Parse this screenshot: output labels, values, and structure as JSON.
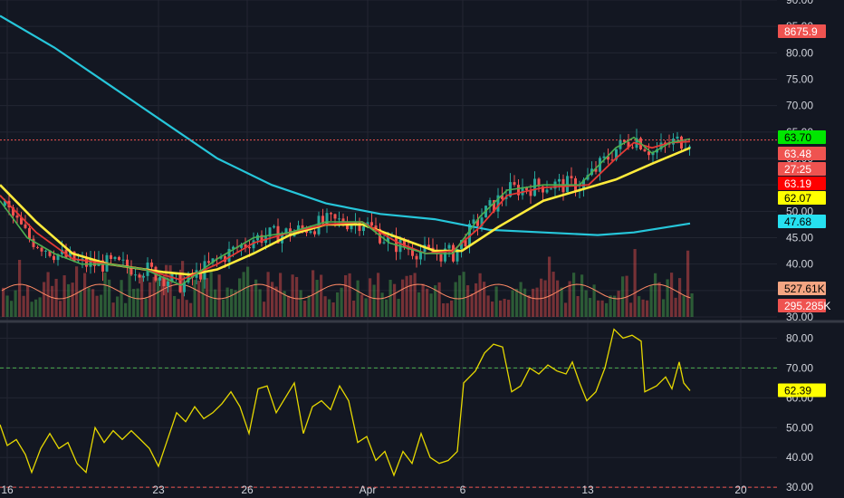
{
  "colors": {
    "background": "#131722",
    "grid": "#232632",
    "axis_text": "#d1d4dc",
    "candle_up": "#26a69a",
    "candle_down": "#ef5350",
    "bar_up": "#4caf50",
    "bar_down": "#ef5350",
    "ema_fast": "#4caf50",
    "ema_mid": "#e53935",
    "ema_slow": "#ffeb3b",
    "sma_long": "#26c6da",
    "volume_ma": "#ff8a65",
    "rsi_line": "#e6d800",
    "rsi_upper": "#4caf50",
    "rsi_lower": "#ef5350"
  },
  "chart_data": [
    {
      "type": "candlestick",
      "panel": "price",
      "x_ticks": [
        "16",
        "23",
        "26",
        "Apr",
        "6",
        "13",
        "20"
      ],
      "y_ticks": [
        "30.00",
        "35.00",
        "40.00",
        "45.00",
        "50.00",
        "55.00",
        "60.00",
        "65.00",
        "70.00",
        "75.00",
        "80.00",
        "85.00",
        "90.00"
      ],
      "ylim": [
        30,
        90
      ],
      "series": [
        {
          "key": "sma_long",
          "points": [
            [
              0,
              87
            ],
            [
              60,
              81
            ],
            [
              120,
              74
            ],
            [
              180,
              67
            ],
            [
              240,
              60
            ],
            [
              300,
              55
            ],
            [
              360,
              51.5
            ],
            [
              420,
              49.5
            ],
            [
              480,
              48.5
            ],
            [
              540,
              46.5
            ],
            [
              600,
              46
            ],
            [
              660,
              45.5
            ],
            [
              700,
              46
            ],
            [
              762,
              47.7
            ]
          ]
        },
        {
          "key": "ema_slow",
          "points": [
            [
              0,
              55
            ],
            [
              40,
              48
            ],
            [
              80,
              42
            ],
            [
              120,
              40
            ],
            [
              180,
              38.5
            ],
            [
              210,
              38
            ],
            [
              240,
              39
            ],
            [
              280,
              42
            ],
            [
              320,
              45.5
            ],
            [
              360,
              47.5
            ],
            [
              400,
              47.5
            ],
            [
              440,
              45
            ],
            [
              480,
              42.5
            ],
            [
              510,
              42.5
            ],
            [
              550,
              47
            ],
            [
              600,
              52
            ],
            [
              650,
              54.5
            ],
            [
              680,
              56
            ],
            [
              720,
              59
            ],
            [
              762,
              62
            ]
          ]
        },
        {
          "key": "ema_mid",
          "points": [
            [
              0,
              53
            ],
            [
              40,
              46
            ],
            [
              80,
              41
            ],
            [
              120,
              40
            ],
            [
              160,
              39
            ],
            [
              200,
              37
            ],
            [
              240,
              40
            ],
            [
              280,
              44
            ],
            [
              320,
              46
            ],
            [
              360,
              47.5
            ],
            [
              400,
              48
            ],
            [
              440,
              44
            ],
            [
              470,
              42
            ],
            [
              500,
              42.5
            ],
            [
              530,
              47
            ],
            [
              560,
              53
            ],
            [
              600,
              54.5
            ],
            [
              650,
              55
            ],
            [
              680,
              60
            ],
            [
              700,
              63
            ],
            [
              720,
              62
            ],
            [
              740,
              63
            ],
            [
              762,
              63.2
            ]
          ]
        },
        {
          "key": "ema_fast",
          "points": [
            [
              0,
              52
            ],
            [
              30,
              45
            ],
            [
              60,
              42
            ],
            [
              90,
              40
            ],
            [
              120,
              40
            ],
            [
              160,
              39
            ],
            [
              200,
              36
            ],
            [
              240,
              41
            ],
            [
              280,
              45
            ],
            [
              320,
              46
            ],
            [
              360,
              48
            ],
            [
              400,
              48
            ],
            [
              430,
              44
            ],
            [
              470,
              42
            ],
            [
              500,
              42
            ],
            [
              530,
              49
            ],
            [
              560,
              54
            ],
            [
              600,
              55
            ],
            [
              640,
              55
            ],
            [
              680,
              62
            ],
            [
              700,
              64
            ],
            [
              720,
              61
            ],
            [
              740,
              63
            ],
            [
              762,
              63.7
            ]
          ]
        }
      ],
      "last_values": [
        "8675.9",
        "63.70",
        "63.48",
        "27:25",
        "63.19",
        "62.07",
        "47.68",
        "527.61K",
        "295.285K"
      ],
      "reference_line": 63.5
    },
    {
      "type": "line",
      "panel": "rsi",
      "y_ticks": [
        "30.00",
        "40.00",
        "50.00",
        "60.00",
        "70.00",
        "80.00"
      ],
      "ylim": [
        27,
        85
      ],
      "upper": 70,
      "lower": 30,
      "last_value": "62.39",
      "values": [
        [
          0,
          51
        ],
        [
          8,
          44
        ],
        [
          18,
          46
        ],
        [
          28,
          41
        ],
        [
          35,
          35
        ],
        [
          45,
          43
        ],
        [
          55,
          48
        ],
        [
          65,
          43
        ],
        [
          75,
          45
        ],
        [
          85,
          38
        ],
        [
          95,
          35
        ],
        [
          105,
          50
        ],
        [
          115,
          45
        ],
        [
          125,
          49
        ],
        [
          135,
          46
        ],
        [
          145,
          49
        ],
        [
          155,
          46
        ],
        [
          165,
          43
        ],
        [
          175,
          37
        ],
        [
          185,
          46
        ],
        [
          195,
          55
        ],
        [
          205,
          52
        ],
        [
          215,
          57
        ],
        [
          225,
          53
        ],
        [
          235,
          55
        ],
        [
          245,
          58
        ],
        [
          255,
          62
        ],
        [
          265,
          57
        ],
        [
          275,
          48
        ],
        [
          285,
          63
        ],
        [
          295,
          64
        ],
        [
          305,
          55
        ],
        [
          315,
          60
        ],
        [
          325,
          65
        ],
        [
          335,
          48
        ],
        [
          345,
          57
        ],
        [
          355,
          59
        ],
        [
          365,
          56
        ],
        [
          375,
          64
        ],
        [
          385,
          59
        ],
        [
          395,
          45
        ],
        [
          405,
          47
        ],
        [
          415,
          39
        ],
        [
          425,
          42
        ],
        [
          435,
          34
        ],
        [
          445,
          42
        ],
        [
          455,
          38
        ],
        [
          465,
          48
        ],
        [
          475,
          40
        ],
        [
          485,
          38
        ],
        [
          495,
          39
        ],
        [
          505,
          42
        ],
        [
          512,
          65
        ],
        [
          525,
          69
        ],
        [
          535,
          75
        ],
        [
          545,
          78
        ],
        [
          555,
          77
        ],
        [
          565,
          62
        ],
        [
          575,
          64
        ],
        [
          585,
          70
        ],
        [
          595,
          68
        ],
        [
          605,
          71
        ],
        [
          615,
          69
        ],
        [
          625,
          68
        ],
        [
          632,
          72
        ],
        [
          640,
          65
        ],
        [
          648,
          59
        ],
        [
          658,
          62
        ],
        [
          668,
          70
        ],
        [
          678,
          83
        ],
        [
          688,
          80
        ],
        [
          698,
          81
        ],
        [
          708,
          79
        ],
        [
          712,
          62
        ],
        [
          725,
          64
        ],
        [
          735,
          67
        ],
        [
          742,
          63
        ],
        [
          750,
          72
        ],
        [
          755,
          65
        ],
        [
          762,
          62.4
        ]
      ]
    }
  ]
}
